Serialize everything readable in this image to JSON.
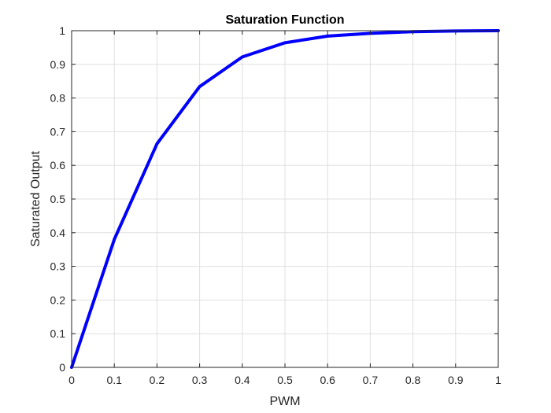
{
  "chart_data": {
    "type": "line",
    "title": "Saturation Function",
    "xlabel": "PWM",
    "ylabel": "Saturated Output",
    "xlim": [
      0,
      1
    ],
    "ylim": [
      0,
      1
    ],
    "grid": true,
    "x_ticks": [
      0,
      0.1,
      0.2,
      0.3,
      0.4,
      0.5,
      0.6,
      0.7,
      0.8,
      0.9,
      1
    ],
    "x_tick_labels": [
      "0",
      "0.1",
      "0.2",
      "0.3",
      "0.4",
      "0.5",
      "0.6",
      "0.7",
      "0.8",
      "0.9",
      "1"
    ],
    "y_ticks": [
      0,
      0.1,
      0.2,
      0.3,
      0.4,
      0.5,
      0.6,
      0.7,
      0.8,
      0.9,
      1
    ],
    "y_tick_labels": [
      "0",
      "0.1",
      "0.2",
      "0.3",
      "0.4",
      "0.5",
      "0.6",
      "0.7",
      "0.8",
      "0.9",
      "1"
    ],
    "series": [
      {
        "color": "#0000ff",
        "x": [
          0,
          0.1,
          0.2,
          0.3,
          0.4,
          0.5,
          0.6,
          0.7,
          0.8,
          0.9,
          1
        ],
        "y": [
          0,
          0.38,
          0.664,
          0.834,
          0.922,
          0.964,
          0.984,
          0.992,
          0.997,
          0.999,
          1
        ]
      }
    ]
  }
}
